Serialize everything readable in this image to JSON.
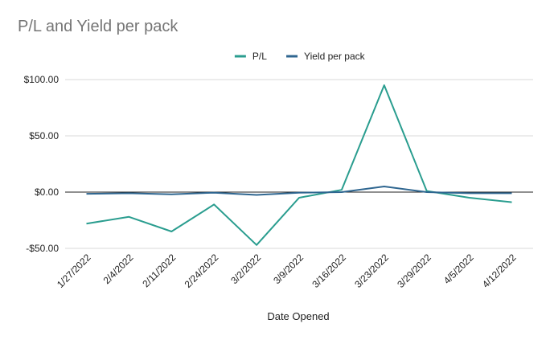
{
  "chart_data": {
    "type": "line",
    "title": "P/L and Yield per pack",
    "xlabel": "Date Opened",
    "ylabel": "",
    "categories": [
      "1/27/2022",
      "2/4/2022",
      "2/11/2022",
      "2/24/2022",
      "3/2/2022",
      "3/9/2022",
      "3/16/2022",
      "3/23/2022",
      "3/29/2022",
      "4/5/2022",
      "4/12/2022"
    ],
    "ylim": [
      -50,
      100
    ],
    "yticks": [
      -50,
      0,
      50,
      100
    ],
    "ytick_labels": [
      "-$50.00",
      "$0.00",
      "$50.00",
      "$100.00"
    ],
    "grid": true,
    "legend": "top",
    "series": [
      {
        "name": "P/L",
        "color": "#2a9d8f",
        "values": [
          -28,
          -22,
          -35,
          -11,
          -47,
          -5,
          2,
          95,
          1,
          -5,
          -9
        ]
      },
      {
        "name": "Yield per pack",
        "color": "#2f6690",
        "values": [
          -1.5,
          -1,
          -2,
          -0.5,
          -2.5,
          -0.5,
          0,
          5,
          0,
          -1,
          -1
        ]
      }
    ]
  }
}
